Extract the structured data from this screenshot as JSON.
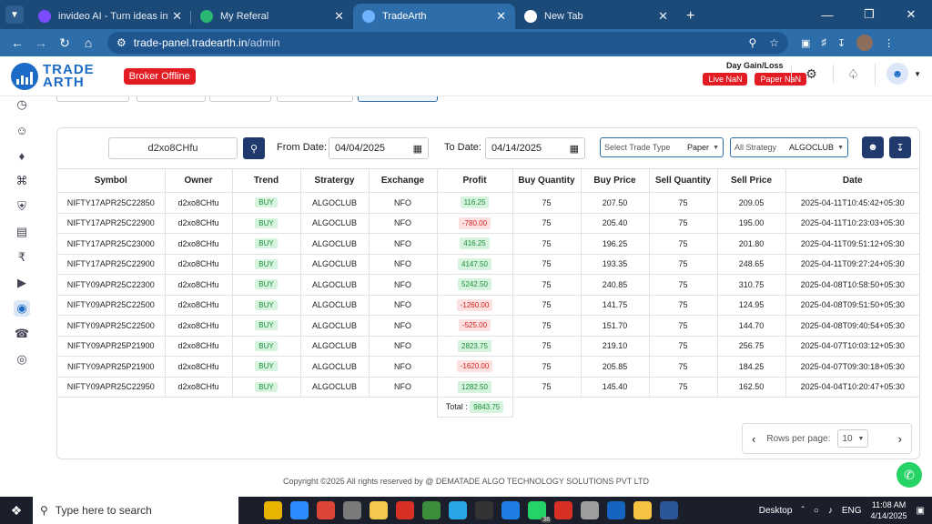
{
  "browser": {
    "tabs": [
      {
        "title": "invideo AI - Turn ideas into vide",
        "icon_color": "#7b4cff"
      },
      {
        "title": "My Referal",
        "icon_color": "#2bb673"
      },
      {
        "title": "TradeArth",
        "icon_color": "#6fb3ff"
      },
      {
        "title": "New Tab",
        "icon_color": "#ffffff"
      }
    ],
    "url_host": "trade-panel.tradearth.in",
    "url_path": "/admin"
  },
  "header": {
    "logo_line1": "TRADE",
    "logo_line2": "ARTH",
    "broker_status": "Broker Offline",
    "day_gain_label": "Day Gain/Loss",
    "live_label": "Live NaN",
    "paper_label": "Paper NaN"
  },
  "filters": {
    "search_value": "d2xo8CHfu",
    "from_label": "From Date:",
    "from_value": "04/04/2025",
    "to_label": "To Date:",
    "to_value": "04/14/2025",
    "trade_type_placeholder": "Select Trade Type",
    "trade_type_value": "Paper",
    "strategy_placeholder": "All Strategy",
    "strategy_value": "ALGOCLUB"
  },
  "table": {
    "columns": [
      "Symbol",
      "Owner",
      "Trend",
      "Stratergy",
      "Exchange",
      "Profit",
      "Buy Quantity",
      "Buy Price",
      "Sell Quantity",
      "Sell Price",
      "Date"
    ],
    "rows": [
      {
        "symbol": "NIFTY17APR25C22850",
        "owner": "d2xo8CHfu",
        "trend": "BUY",
        "strategy": "ALGOCLUB",
        "exchange": "NFO",
        "profit": "116.25",
        "buy_qty": "75",
        "buy_price": "207.50",
        "sell_qty": "75",
        "sell_price": "209.05",
        "date": "2025-04-11T10:45:42+05:30"
      },
      {
        "symbol": "NIFTY17APR25C22900",
        "owner": "d2xo8CHfu",
        "trend": "BUY",
        "strategy": "ALGOCLUB",
        "exchange": "NFO",
        "profit": "-780.00",
        "buy_qty": "75",
        "buy_price": "205.40",
        "sell_qty": "75",
        "sell_price": "195.00",
        "date": "2025-04-11T10:23:03+05:30"
      },
      {
        "symbol": "NIFTY17APR25C23000",
        "owner": "d2xo8CHfu",
        "trend": "BUY",
        "strategy": "ALGOCLUB",
        "exchange": "NFO",
        "profit": "416.25",
        "buy_qty": "75",
        "buy_price": "196.25",
        "sell_qty": "75",
        "sell_price": "201.80",
        "date": "2025-04-11T09:51:12+05:30"
      },
      {
        "symbol": "NIFTY17APR25C22900",
        "owner": "d2xo8CHfu",
        "trend": "BUY",
        "strategy": "ALGOCLUB",
        "exchange": "NFO",
        "profit": "4147.50",
        "buy_qty": "75",
        "buy_price": "193.35",
        "sell_qty": "75",
        "sell_price": "248.65",
        "date": "2025-04-11T09:27:24+05:30"
      },
      {
        "symbol": "NIFTY09APR25C22300",
        "owner": "d2xo8CHfu",
        "trend": "BUY",
        "strategy": "ALGOCLUB",
        "exchange": "NFO",
        "profit": "5242.50",
        "buy_qty": "75",
        "buy_price": "240.85",
        "sell_qty": "75",
        "sell_price": "310.75",
        "date": "2025-04-08T10:58:50+05:30"
      },
      {
        "symbol": "NIFTY09APR25C22500",
        "owner": "d2xo8CHfu",
        "trend": "BUY",
        "strategy": "ALGOCLUB",
        "exchange": "NFO",
        "profit": "-1260.00",
        "buy_qty": "75",
        "buy_price": "141.75",
        "sell_qty": "75",
        "sell_price": "124.95",
        "date": "2025-04-08T09:51:50+05:30"
      },
      {
        "symbol": "NIFTY09APR25C22500",
        "owner": "d2xo8CHfu",
        "trend": "BUY",
        "strategy": "ALGOCLUB",
        "exchange": "NFO",
        "profit": "-525.00",
        "buy_qty": "75",
        "buy_price": "151.70",
        "sell_qty": "75",
        "sell_price": "144.70",
        "date": "2025-04-08T09:40:54+05:30"
      },
      {
        "symbol": "NIFTY09APR25P21900",
        "owner": "d2xo8CHfu",
        "trend": "BUY",
        "strategy": "ALGOCLUB",
        "exchange": "NFO",
        "profit": "2823.75",
        "buy_qty": "75",
        "buy_price": "219.10",
        "sell_qty": "75",
        "sell_price": "256.75",
        "date": "2025-04-07T10:03:12+05:30"
      },
      {
        "symbol": "NIFTY09APR25P21900",
        "owner": "d2xo8CHfu",
        "trend": "BUY",
        "strategy": "ALGOCLUB",
        "exchange": "NFO",
        "profit": "-1620.00",
        "buy_qty": "75",
        "buy_price": "205.85",
        "sell_qty": "75",
        "sell_price": "184.25",
        "date": "2025-04-07T09:30:18+05:30"
      },
      {
        "symbol": "NIFTY09APR25C22950",
        "owner": "d2xo8CHfu",
        "trend": "BUY",
        "strategy": "ALGOCLUB",
        "exchange": "NFO",
        "profit": "1282.50",
        "buy_qty": "75",
        "buy_price": "145.40",
        "sell_qty": "75",
        "sell_price": "162.50",
        "date": "2025-04-04T10:20:47+05:30"
      }
    ],
    "total_label": "Total :",
    "total_value": "9843.75"
  },
  "pagination": {
    "rows_label": "Rows per page:",
    "rows_value": "10"
  },
  "footer": "Copyright ©2025 All rights reserved by @ DEMATADE ALGO TECHNOLOGY SOLUTIONS PVT LTD",
  "taskbar": {
    "search_placeholder": "Type here to search",
    "desktop_label": "Desktop",
    "lang": "ENG",
    "time": "11:08 AM",
    "date": "4/14/2025",
    "badge": "38"
  },
  "colors": {
    "accent": "#213a6d",
    "danger": "#e31b23",
    "positive": "#1e8f3d"
  }
}
